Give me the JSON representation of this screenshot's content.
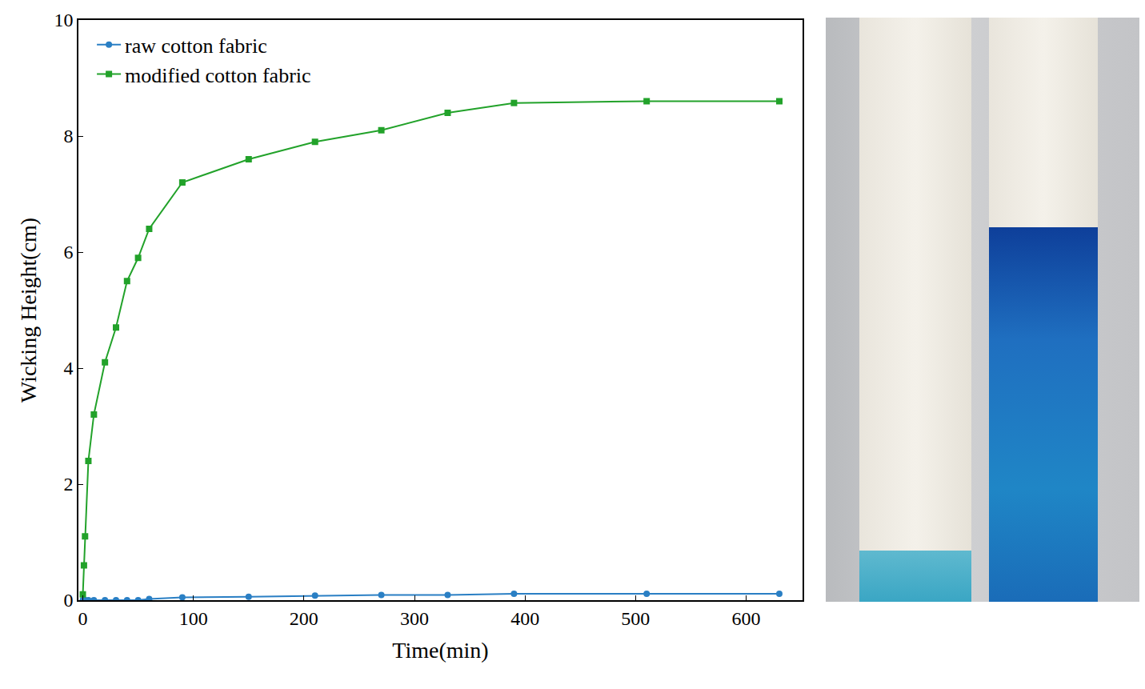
{
  "chart_data": {
    "type": "line",
    "x_label": "Time(min)",
    "y_label": "Wicking Height(cm)",
    "x": [
      0,
      1,
      2,
      5,
      10,
      20,
      30,
      40,
      50,
      60,
      90,
      150,
      210,
      270,
      330,
      390,
      510,
      630
    ],
    "series": [
      {
        "name": "raw cotton fabric",
        "color": "#2a7fc4",
        "marker": "circle",
        "values": [
          0,
          0,
          0,
          0,
          0,
          0,
          0,
          0,
          0,
          0.02,
          0.05,
          0.06,
          0.08,
          0.09,
          0.09,
          0.11,
          0.11,
          0.11
        ]
      },
      {
        "name": "modified cotton fabric",
        "color": "#22a22a",
        "marker": "square",
        "values": [
          0.1,
          0.6,
          1.1,
          2.4,
          3.2,
          4.1,
          4.7,
          5.5,
          5.9,
          6.4,
          7.2,
          7.6,
          7.9,
          8.1,
          8.4,
          8.57,
          8.6,
          8.6
        ]
      }
    ],
    "xlim": [
      -4,
      651
    ],
    "xticks": [
      0,
      100,
      200,
      300,
      400,
      500,
      600
    ],
    "ylim": [
      0,
      10
    ],
    "yticks": [
      0,
      2,
      4,
      6,
      8,
      10
    ],
    "grid": false,
    "legend": "top-left"
  }
}
